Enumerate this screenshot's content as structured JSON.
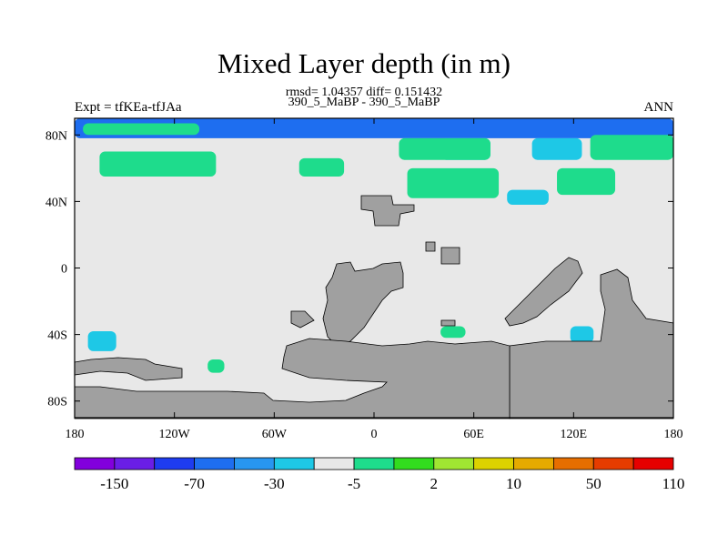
{
  "chart_data": {
    "type": "heatmap",
    "title": "Mixed Layer depth (in m)",
    "subtitle_stats": "rmsd= 1.04357 diff= 0.151432",
    "subtitle_cases": "390_5_MaBP - 390_5_MaBP",
    "left_label": "Expt = tfKEa-tfJAa",
    "right_label": "ANN",
    "x_ticks": [
      "180",
      "120W",
      "60W",
      "0",
      "60E",
      "120E",
      "180"
    ],
    "x_tick_values": [
      -180,
      -120,
      -60,
      0,
      60,
      120,
      180
    ],
    "y_ticks": [
      "80N",
      "40N",
      "0",
      "40S",
      "80S"
    ],
    "y_tick_values": [
      80,
      40,
      0,
      -40,
      -80
    ],
    "xlim": [
      -180,
      180
    ],
    "ylim": [
      -90,
      90
    ],
    "colorbar": {
      "tick_labels": [
        "-150",
        "-70",
        "-30",
        "-5",
        "2",
        "10",
        "50",
        "110"
      ],
      "colors": [
        "#8200dc",
        "#6a1ee6",
        "#1e3cf0",
        "#1e6ef0",
        "#2896f0",
        "#1ec8e6",
        "#e8e8e8",
        "#1edc8c",
        "#32dc1e",
        "#a0e632",
        "#dcd200",
        "#e6aa00",
        "#e66e00",
        "#e63c00",
        "#e60000"
      ]
    },
    "land_color": "#a0a0a0",
    "ocean_zero_color": "#e8e8e8",
    "anomaly_regions": [
      {
        "lon": [
          -180,
          180
        ],
        "lat": [
          78,
          90
        ],
        "level": "-30",
        "color": "#1e6ef0"
      },
      {
        "lon": [
          -175,
          -105
        ],
        "lat": [
          80,
          87
        ],
        "level": "2",
        "color": "#1edc8c"
      },
      {
        "lon": [
          40,
          70
        ],
        "lat": [
          65,
          78
        ],
        "level": "-5",
        "color": "#1ec8e6"
      },
      {
        "lon": [
          95,
          125
        ],
        "lat": [
          65,
          78
        ],
        "level": "-5",
        "color": "#1ec8e6"
      },
      {
        "lon": [
          -165,
          -95
        ],
        "lat": [
          55,
          70
        ],
        "level": "2",
        "color": "#1edc8c"
      },
      {
        "lon": [
          15,
          70
        ],
        "lat": [
          65,
          78
        ],
        "level": "2",
        "color": "#1edc8c"
      },
      {
        "lon": [
          130,
          180
        ],
        "lat": [
          65,
          80
        ],
        "level": "2",
        "color": "#1edc8c"
      },
      {
        "lon": [
          -45,
          -18
        ],
        "lat": [
          55,
          66
        ],
        "level": "2",
        "color": "#1edc8c"
      },
      {
        "lon": [
          20,
          75
        ],
        "lat": [
          42,
          60
        ],
        "level": "2",
        "color": "#1edc8c"
      },
      {
        "lon": [
          110,
          145
        ],
        "lat": [
          44,
          60
        ],
        "level": "2",
        "color": "#1edc8c"
      },
      {
        "lon": [
          80,
          105
        ],
        "lat": [
          38,
          47
        ],
        "level": "-5",
        "color": "#1ec8e6"
      },
      {
        "lon": [
          -172,
          -155
        ],
        "lat": [
          -50,
          -38
        ],
        "level": "-5",
        "color": "#1ec8e6"
      },
      {
        "lon": [
          -100,
          -90
        ],
        "lat": [
          -63,
          -55
        ],
        "level": "2",
        "color": "#1edc8c"
      },
      {
        "lon": [
          118,
          132
        ],
        "lat": [
          -45,
          -35
        ],
        "level": "-5",
        "color": "#1ec8e6"
      },
      {
        "lon": [
          40,
          55
        ],
        "lat": [
          -42,
          -35
        ],
        "level": "2",
        "color": "#1edc8c"
      }
    ]
  }
}
